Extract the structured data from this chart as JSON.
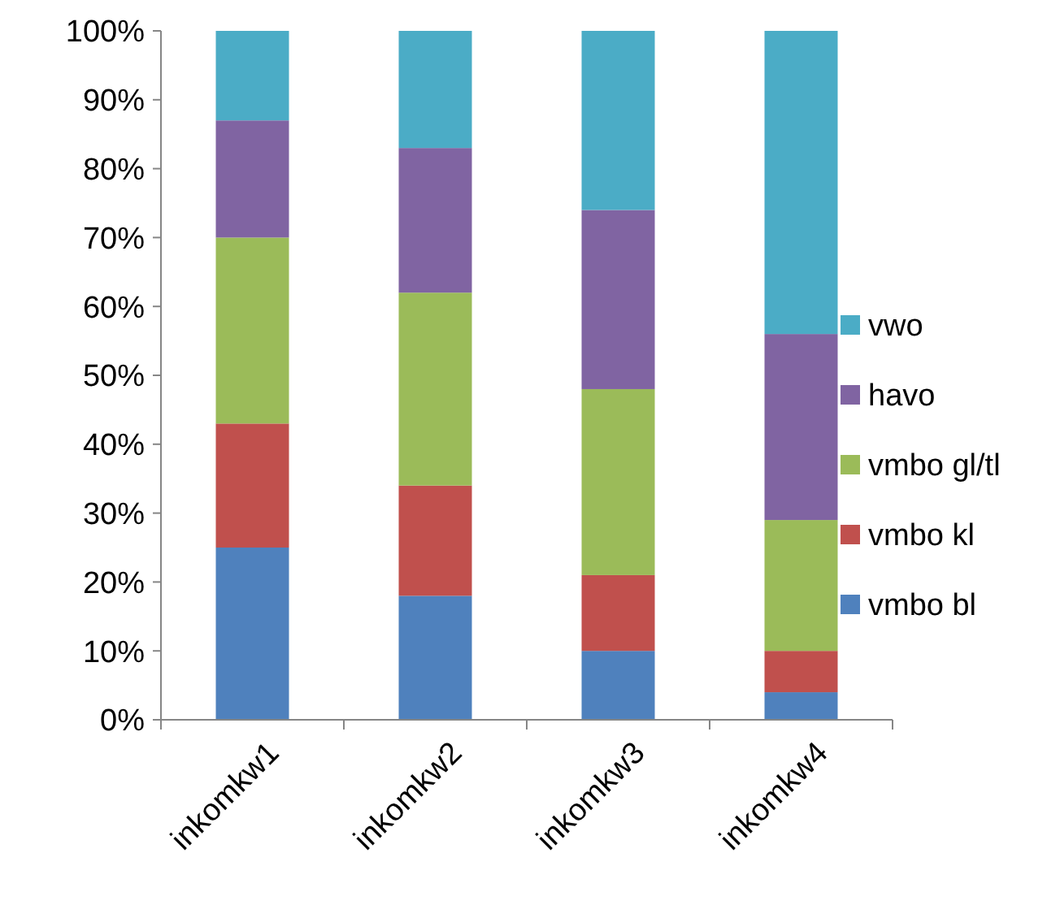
{
  "chart_data": {
    "type": "bar",
    "stacked": true,
    "categories": [
      "inkomkw1",
      "inkomkw2",
      "inkomkw3",
      "inkomkw4"
    ],
    "series": [
      {
        "name": "vmbo bl",
        "color": "#4f81bd",
        "values": [
          25,
          18,
          10,
          4
        ]
      },
      {
        "name": "vmbo kl",
        "color": "#c0504d",
        "values": [
          18,
          16,
          11,
          6
        ]
      },
      {
        "name": "vmbo gl/tl",
        "color": "#9bbb59",
        "values": [
          27,
          28,
          27,
          19
        ]
      },
      {
        "name": "havo",
        "color": "#8064a2",
        "values": [
          17,
          21,
          26,
          27
        ]
      },
      {
        "name": "vwo",
        "color": "#4bacc6",
        "values": [
          13,
          17,
          26,
          44
        ]
      }
    ],
    "ylim": [
      0,
      100
    ],
    "yticks": [
      {
        "value": 0,
        "label": "0%"
      },
      {
        "value": 10,
        "label": "10%"
      },
      {
        "value": 20,
        "label": "20%"
      },
      {
        "value": 30,
        "label": "30%"
      },
      {
        "value": 40,
        "label": "40%"
      },
      {
        "value": 50,
        "label": "50%"
      },
      {
        "value": 60,
        "label": "60%"
      },
      {
        "value": 70,
        "label": "70%"
      },
      {
        "value": 80,
        "label": "80%"
      },
      {
        "value": 90,
        "label": "90%"
      },
      {
        "value": 100,
        "label": "100%"
      }
    ],
    "grid": false,
    "legend": "right"
  }
}
